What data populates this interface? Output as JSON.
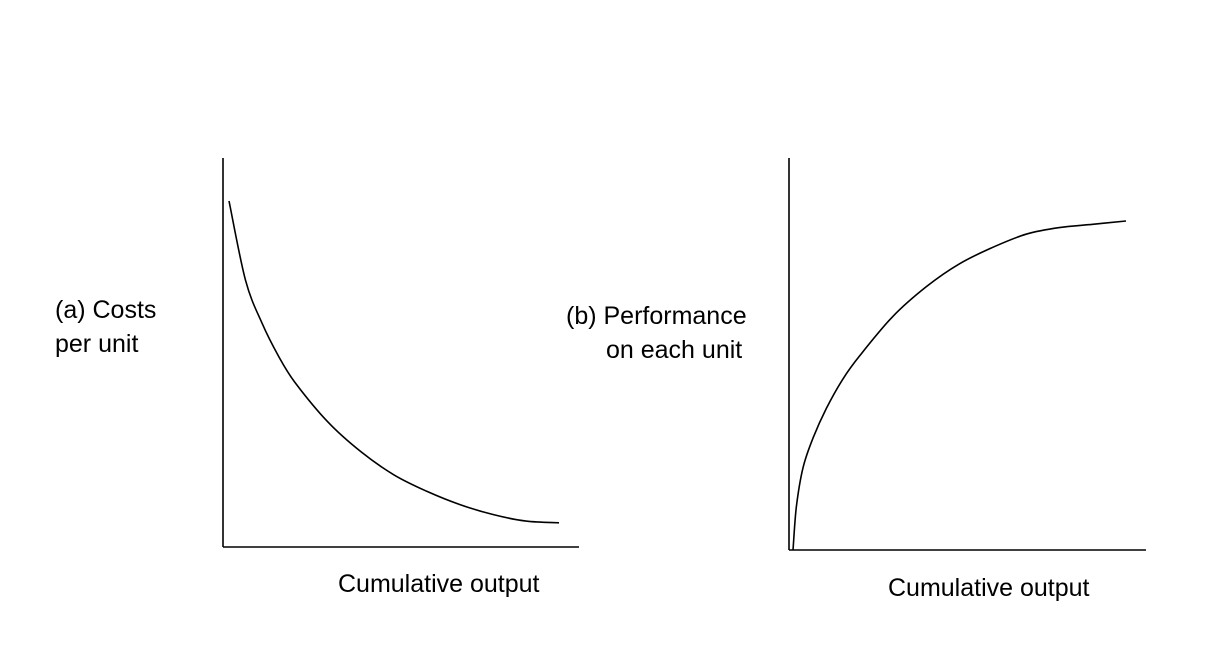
{
  "chart_data": [
    {
      "type": "line",
      "panel": "(a)",
      "ylabel_lines": [
        "(a) Costs",
        "per unit"
      ],
      "xlabel": "Cumulative output",
      "trend": "decreasing",
      "series": [
        {
          "x": [
            0,
            0.05,
            0.1,
            0.15,
            0.2,
            0.3,
            0.4,
            0.5,
            0.6,
            0.7,
            0.8,
            0.9,
            1.0
          ],
          "y": [
            1.0,
            0.76,
            0.63,
            0.53,
            0.45,
            0.33,
            0.24,
            0.17,
            0.12,
            0.08,
            0.05,
            0.03,
            0.025
          ]
        }
      ]
    },
    {
      "type": "line",
      "panel": "(b)",
      "ylabel_lines": [
        "(b) Performance",
        "on each unit"
      ],
      "xlabel": "Cumulative output",
      "trend": "increasing",
      "series": [
        {
          "x": [
            0,
            0.01,
            0.03,
            0.06,
            0.1,
            0.15,
            0.2,
            0.3,
            0.4,
            0.5,
            0.6,
            0.7,
            0.8,
            0.9,
            1.0
          ],
          "y": [
            0.0,
            0.13,
            0.25,
            0.34,
            0.43,
            0.52,
            0.59,
            0.71,
            0.8,
            0.87,
            0.92,
            0.96,
            0.98,
            0.99,
            1.0
          ]
        }
      ]
    }
  ]
}
